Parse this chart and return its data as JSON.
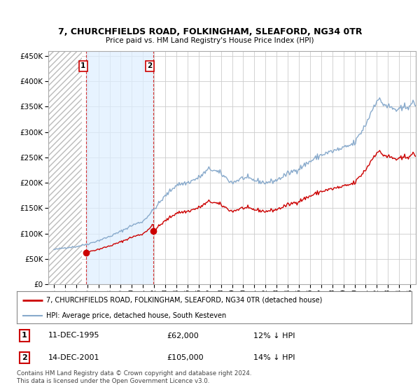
{
  "title1": "7, CHURCHFIELDS ROAD, FOLKINGHAM, SLEAFORD, NG34 0TR",
  "title2": "Price paid vs. HM Land Registry's House Price Index (HPI)",
  "legend_line1": "7, CHURCHFIELDS ROAD, FOLKINGHAM, SLEAFORD, NG34 0TR (detached house)",
  "legend_line2": "HPI: Average price, detached house, South Kesteven",
  "footnote": "Contains HM Land Registry data © Crown copyright and database right 2024.\nThis data is licensed under the Open Government Licence v3.0.",
  "sale1_label": "1",
  "sale1_date": "11-DEC-1995",
  "sale1_price": "£62,000",
  "sale1_hpi": "12% ↓ HPI",
  "sale2_label": "2",
  "sale2_date": "14-DEC-2001",
  "sale2_price": "£105,000",
  "sale2_hpi": "14% ↓ HPI",
  "sale1_year": 1995.917,
  "sale1_value": 62000,
  "sale2_year": 2001.917,
  "sale2_value": 105000,
  "price_line_color": "#cc0000",
  "hpi_line_color": "#88aacc",
  "dashed_line_color": "#cc0000",
  "ylim": [
    0,
    460000
  ],
  "xlim_left": 1992.5,
  "xlim_right": 2025.5,
  "hatch_end_year": 1995.5,
  "shade_start_year": 1995.917,
  "shade_end_year": 2001.917,
  "bg_color": "#ffffff",
  "grid_color": "#cccccc"
}
